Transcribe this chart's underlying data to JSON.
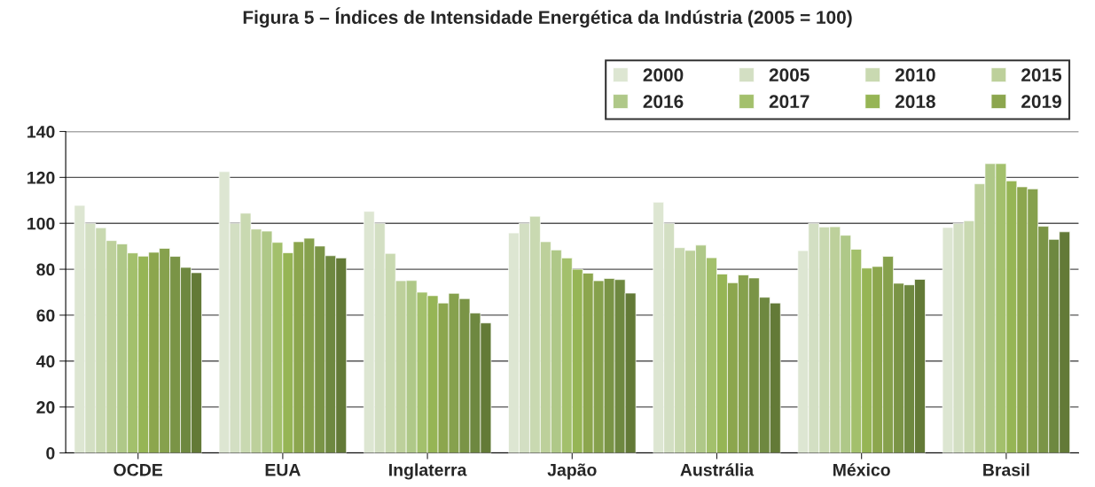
{
  "chart_data": {
    "type": "bar",
    "title": "Figura 5 – Índices de Intensidade Energética da Indústria (2005 = 100)",
    "categories": [
      "OCDE",
      "EUA",
      "Inglaterra",
      "Japão",
      "Austrália",
      "México",
      "Brasil"
    ],
    "series": [
      {
        "name": "2000",
        "color": "#dde6d2",
        "values": [
          107.8,
          122.5,
          105.2,
          95.8,
          109.2,
          88.1,
          98.2
        ]
      },
      {
        "name": "2005",
        "color": "#d3dfc3",
        "values": [
          100,
          100,
          100,
          100,
          100,
          100,
          100
        ]
      },
      {
        "name": "2010",
        "color": "#c9d9b1",
        "values": [
          98.1,
          104.4,
          86.9,
          103.1,
          89.4,
          98.4,
          101.1
        ]
      },
      {
        "name": "2015",
        "color": "#bdd09b",
        "values": [
          92.5,
          97.5,
          75.0,
          92.0,
          88.2,
          98.5,
          117.2
        ]
      },
      {
        "name": "2016",
        "color": "#afc888",
        "values": [
          91.0,
          96.6,
          75.1,
          88.4,
          90.5,
          94.8,
          126
        ]
      },
      {
        "name": "2017",
        "color": "#a3c06c",
        "values": [
          87.1,
          91.7,
          70.0,
          84.9,
          85.0,
          88.7,
          126
        ]
      },
      {
        "name": "2018",
        "color": "#96b555",
        "values": [
          85.7,
          87.2,
          68.5,
          80.0,
          77.9,
          80.5,
          118.5
        ]
      },
      {
        "name": "2019",
        "color": "#8ca64e",
        "values": [
          87.4,
          92.0,
          65.3,
          78.3,
          74.1,
          81.2,
          115.9
        ]
      },
      {
        "color": "#86a14d",
        "values": [
          89.1,
          93.5,
          69.5,
          75.0,
          77.5,
          85.6,
          115.0
        ]
      },
      {
        "color": "#7a9446",
        "values": [
          85.6,
          90.1,
          67.2,
          76.0,
          76.2,
          73.9,
          98.7
        ]
      },
      {
        "color": "#6e8840",
        "values": [
          80.8,
          85.9,
          60.9,
          75.5,
          67.8,
          73.2,
          93.0
        ]
      },
      {
        "color": "#637a37",
        "values": [
          78.5,
          84.9,
          56.6,
          69.6,
          65.3,
          75.6,
          96.3
        ]
      }
    ],
    "ylim": [
      0,
      140
    ],
    "yticks": [
      0,
      20,
      40,
      60,
      80,
      100,
      120,
      140
    ],
    "grid": "y",
    "legend": "top right"
  }
}
